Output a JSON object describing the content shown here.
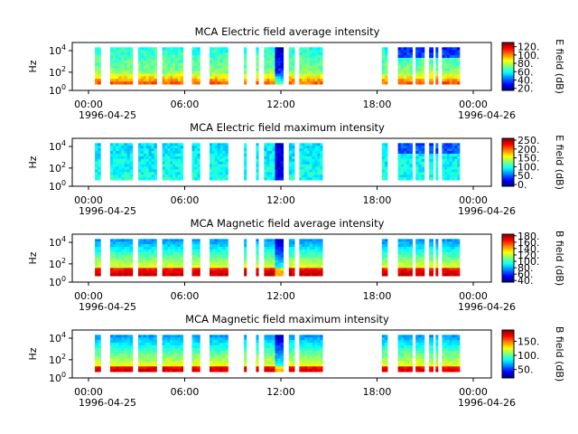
{
  "chart_data": [
    {
      "type": "heatmap",
      "title": "MCA  Electric field average intensity",
      "ylabel": "Hz",
      "y_ticks": [
        "10",
        "10",
        "10"
      ],
      "y_exps": [
        "0",
        "2",
        "4"
      ],
      "x_ticks": [
        "00:00",
        "06:00",
        "12:00",
        "18:00",
        "00:00"
      ],
      "x_date_start": "1996-04-25",
      "x_date_end": "1996-04-26",
      "colorbar_label": "E field (dB)",
      "colorbar_ticks": [
        "20.",
        "40.",
        "60.",
        "80.",
        "100.",
        "120."
      ],
      "colorbar_range": [
        15,
        130
      ],
      "yscale": "log",
      "colormap": "jet",
      "data_segments_hours": [
        [
          0.4,
          0.75
        ],
        [
          1.35,
          2.75
        ],
        [
          3.1,
          4.25
        ],
        [
          4.6,
          5.9
        ],
        [
          6.45,
          6.95
        ],
        [
          7.55,
          8.7
        ],
        [
          9.7,
          9.85
        ],
        [
          10.45,
          10.6
        ],
        [
          10.95,
          12.15
        ],
        [
          12.5,
          12.85
        ],
        [
          13.15,
          14.6
        ],
        [
          18.3,
          18.65
        ],
        [
          19.3,
          20.2
        ],
        [
          20.4,
          20.95
        ],
        [
          21.25,
          21.5
        ],
        [
          21.65,
          21.8
        ],
        [
          22.05,
          23.15
        ]
      ],
      "value_level": "average electric"
    },
    {
      "type": "heatmap",
      "title": "MCA  Electric field maximum intensity",
      "ylabel": "Hz",
      "y_ticks": [
        "10",
        "10",
        "10"
      ],
      "y_exps": [
        "0",
        "2",
        "4"
      ],
      "x_ticks": [
        "00:00",
        "06:00",
        "12:00",
        "18:00",
        "00:00"
      ],
      "x_date_start": "1996-04-25",
      "x_date_end": "1996-04-26",
      "colorbar_label": "E field (dB)",
      "colorbar_ticks": [
        "0.",
        "50.",
        "100.",
        "150.",
        "200.",
        "250."
      ],
      "colorbar_range": [
        -10,
        260
      ],
      "yscale": "log",
      "colormap": "jet",
      "data_segments_hours": [
        [
          0.4,
          0.75
        ],
        [
          1.35,
          2.75
        ],
        [
          3.1,
          4.25
        ],
        [
          4.6,
          5.9
        ],
        [
          6.45,
          6.95
        ],
        [
          7.55,
          8.7
        ],
        [
          9.7,
          9.85
        ],
        [
          10.45,
          10.6
        ],
        [
          10.95,
          12.15
        ],
        [
          12.5,
          12.85
        ],
        [
          13.15,
          14.6
        ],
        [
          18.3,
          18.65
        ],
        [
          19.3,
          20.2
        ],
        [
          20.4,
          20.95
        ],
        [
          21.25,
          21.5
        ],
        [
          21.65,
          21.8
        ],
        [
          22.05,
          23.15
        ]
      ],
      "value_level": "maximum electric"
    },
    {
      "type": "heatmap",
      "title": "MCA  Magnetic field average intensity",
      "ylabel": "Hz",
      "y_ticks": [
        "10",
        "10",
        "10"
      ],
      "y_exps": [
        "0",
        "2",
        "4"
      ],
      "x_ticks": [
        "00:00",
        "06:00",
        "12:00",
        "18:00",
        "00:00"
      ],
      "x_date_start": "1996-04-25",
      "x_date_end": "1996-04-26",
      "colorbar_label": "B field (dB)",
      "colorbar_ticks": [
        "40.",
        "60.",
        "80.",
        "100.",
        "120.",
        "140.",
        "160.",
        "180."
      ],
      "colorbar_range": [
        35,
        185
      ],
      "yscale": "log",
      "colormap": "jet",
      "data_segments_hours": [
        [
          0.4,
          0.75
        ],
        [
          1.35,
          2.75
        ],
        [
          3.1,
          4.25
        ],
        [
          4.6,
          5.9
        ],
        [
          6.45,
          6.95
        ],
        [
          7.55,
          8.7
        ],
        [
          9.7,
          9.85
        ],
        [
          10.45,
          10.6
        ],
        [
          10.95,
          12.15
        ],
        [
          12.5,
          12.85
        ],
        [
          13.15,
          14.6
        ],
        [
          18.3,
          18.65
        ],
        [
          19.3,
          20.2
        ],
        [
          20.4,
          20.95
        ],
        [
          21.25,
          21.5
        ],
        [
          21.65,
          21.8
        ],
        [
          22.05,
          23.15
        ]
      ],
      "value_level": "average magnetic"
    },
    {
      "type": "heatmap",
      "title": "MCA  Magnetic field maximum intensity",
      "ylabel": "Hz",
      "y_ticks": [
        "10",
        "10",
        "10"
      ],
      "y_exps": [
        "0",
        "2",
        "4"
      ],
      "x_ticks": [
        "00:00",
        "06:00",
        "12:00",
        "18:00",
        "00:00"
      ],
      "x_date_start": "1996-04-25",
      "x_date_end": "1996-04-26",
      "colorbar_label": "B field (dB)",
      "colorbar_ticks": [
        "50.",
        "100.",
        "150."
      ],
      "colorbar_range": [
        20,
        190
      ],
      "yscale": "log",
      "colormap": "jet",
      "data_segments_hours": [
        [
          0.4,
          0.75
        ],
        [
          1.35,
          2.75
        ],
        [
          3.1,
          4.25
        ],
        [
          4.6,
          5.9
        ],
        [
          6.45,
          6.95
        ],
        [
          7.55,
          8.7
        ],
        [
          9.7,
          9.85
        ],
        [
          10.45,
          10.6
        ],
        [
          10.95,
          12.15
        ],
        [
          12.5,
          12.85
        ],
        [
          13.15,
          14.6
        ],
        [
          18.3,
          18.65
        ],
        [
          19.3,
          20.2
        ],
        [
          20.4,
          20.95
        ],
        [
          21.25,
          21.5
        ],
        [
          21.65,
          21.8
        ],
        [
          22.05,
          23.15
        ]
      ],
      "value_level": "maximum magnetic"
    }
  ]
}
